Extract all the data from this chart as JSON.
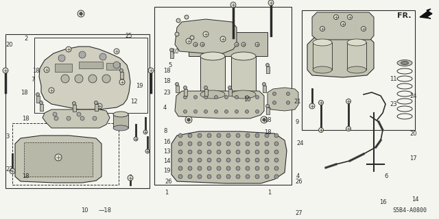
{
  "background_color": "#f5f5f0",
  "line_color": "#2a2a2a",
  "fig_width": 6.4,
  "fig_height": 3.2,
  "dpi": 100,
  "diagram_code": "S5B4-A0800"
}
